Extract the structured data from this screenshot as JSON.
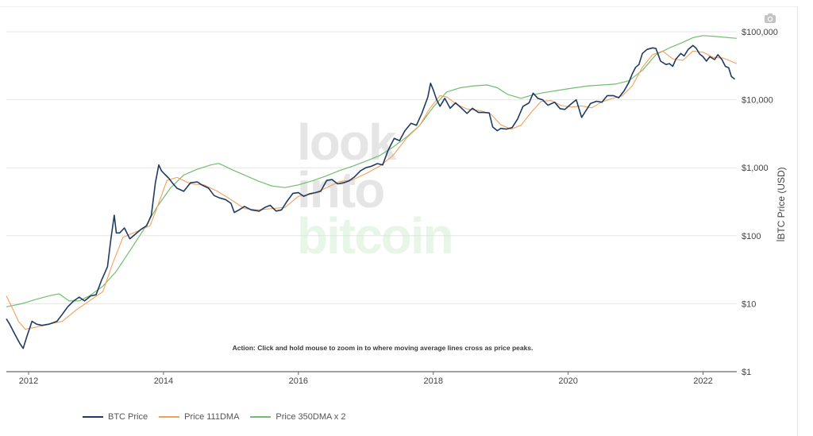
{
  "watermark": {
    "line1": "look",
    "line2": "into",
    "line3": "bitcoin"
  },
  "annotation": "Action: Click and hold mouse to zoom in to where moving average lines cross as price peaks.",
  "icons": {
    "modebar": "camera-icon"
  },
  "chart_data": {
    "type": "line",
    "title": "",
    "xlabel": "",
    "ylabel": "BTC Price (USD)",
    "y_scale": "log",
    "ylim": [
      1,
      100000
    ],
    "xlim": [
      2011.67,
      2022.5
    ],
    "y_ticks": [
      1,
      10,
      100,
      1000,
      10000,
      100000
    ],
    "y_tick_labels": [
      "$1",
      "$10",
      "$100",
      "$1,000",
      "$10,000",
      "$100,000"
    ],
    "x_ticks": [
      2012,
      2014,
      2016,
      2018,
      2020,
      2022
    ],
    "x_tick_labels": [
      "2012",
      "2014",
      "2016",
      "2018",
      "2020",
      "2022"
    ],
    "grid": true,
    "legend_position": "bottom-left",
    "series": [
      {
        "name": "BTC Price",
        "color": "#1f3b63",
        "points": [
          [
            2011.67,
            6
          ],
          [
            2011.72,
            5
          ],
          [
            2011.8,
            3.5
          ],
          [
            2011.87,
            2.6
          ],
          [
            2011.92,
            2.2
          ],
          [
            2011.97,
            3.2
          ],
          [
            2012.05,
            5.5
          ],
          [
            2012.12,
            5.0
          ],
          [
            2012.2,
            4.8
          ],
          [
            2012.3,
            5.0
          ],
          [
            2012.42,
            5.5
          ],
          [
            2012.5,
            7
          ],
          [
            2012.58,
            9
          ],
          [
            2012.67,
            11
          ],
          [
            2012.75,
            12.5
          ],
          [
            2012.83,
            11
          ],
          [
            2012.92,
            13
          ],
          [
            2013.0,
            13.5
          ],
          [
            2013.08,
            22
          ],
          [
            2013.17,
            35
          ],
          [
            2013.22,
            90
          ],
          [
            2013.27,
            200
          ],
          [
            2013.3,
            110
          ],
          [
            2013.35,
            110
          ],
          [
            2013.42,
            130
          ],
          [
            2013.5,
            90
          ],
          [
            2013.58,
            105
          ],
          [
            2013.67,
            125
          ],
          [
            2013.75,
            140
          ],
          [
            2013.82,
            200
          ],
          [
            2013.88,
            600
          ],
          [
            2013.93,
            1100
          ],
          [
            2013.97,
            900
          ],
          [
            2014.02,
            800
          ],
          [
            2014.08,
            700
          ],
          [
            2014.13,
            600
          ],
          [
            2014.2,
            500
          ],
          [
            2014.3,
            450
          ],
          [
            2014.4,
            600
          ],
          [
            2014.5,
            620
          ],
          [
            2014.58,
            550
          ],
          [
            2014.67,
            500
          ],
          [
            2014.75,
            390
          ],
          [
            2014.83,
            360
          ],
          [
            2014.92,
            340
          ],
          [
            2015.0,
            300
          ],
          [
            2015.05,
            220
          ],
          [
            2015.12,
            240
          ],
          [
            2015.2,
            270
          ],
          [
            2015.3,
            240
          ],
          [
            2015.42,
            230
          ],
          [
            2015.5,
            260
          ],
          [
            2015.58,
            280
          ],
          [
            2015.67,
            230
          ],
          [
            2015.75,
            240
          ],
          [
            2015.83,
            320
          ],
          [
            2015.92,
            420
          ],
          [
            2016.0,
            430
          ],
          [
            2016.08,
            380
          ],
          [
            2016.17,
            415
          ],
          [
            2016.25,
            430
          ],
          [
            2016.33,
            450
          ],
          [
            2016.42,
            650
          ],
          [
            2016.5,
            670
          ],
          [
            2016.58,
            580
          ],
          [
            2016.67,
            600
          ],
          [
            2016.75,
            640
          ],
          [
            2016.83,
            730
          ],
          [
            2016.92,
            900
          ],
          [
            2017.0,
            1000
          ],
          [
            2017.08,
            1050
          ],
          [
            2017.17,
            1150
          ],
          [
            2017.25,
            1100
          ],
          [
            2017.33,
            1800
          ],
          [
            2017.42,
            2700
          ],
          [
            2017.5,
            2500
          ],
          [
            2017.58,
            3500
          ],
          [
            2017.67,
            4500
          ],
          [
            2017.75,
            4200
          ],
          [
            2017.83,
            6300
          ],
          [
            2017.92,
            11000
          ],
          [
            2017.96,
            17500
          ],
          [
            2018.0,
            14000
          ],
          [
            2018.05,
            10000
          ],
          [
            2018.1,
            8000
          ],
          [
            2018.17,
            10500
          ],
          [
            2018.25,
            7500
          ],
          [
            2018.33,
            9000
          ],
          [
            2018.42,
            7500
          ],
          [
            2018.5,
            6300
          ],
          [
            2018.58,
            7500
          ],
          [
            2018.67,
            6500
          ],
          [
            2018.75,
            6500
          ],
          [
            2018.83,
            6400
          ],
          [
            2018.88,
            4000
          ],
          [
            2018.95,
            3500
          ],
          [
            2019.0,
            3800
          ],
          [
            2019.08,
            3700
          ],
          [
            2019.17,
            3900
          ],
          [
            2019.25,
            5200
          ],
          [
            2019.33,
            8000
          ],
          [
            2019.42,
            9000
          ],
          [
            2019.48,
            12500
          ],
          [
            2019.55,
            10500
          ],
          [
            2019.62,
            10000
          ],
          [
            2019.7,
            8300
          ],
          [
            2019.8,
            9200
          ],
          [
            2019.88,
            7400
          ],
          [
            2019.95,
            7200
          ],
          [
            2020.05,
            8800
          ],
          [
            2020.12,
            10000
          ],
          [
            2020.2,
            5500
          ],
          [
            2020.25,
            6600
          ],
          [
            2020.33,
            8800
          ],
          [
            2020.42,
            9500
          ],
          [
            2020.5,
            9200
          ],
          [
            2020.58,
            11500
          ],
          [
            2020.67,
            11500
          ],
          [
            2020.75,
            10700
          ],
          [
            2020.83,
            13500
          ],
          [
            2020.9,
            18000
          ],
          [
            2020.95,
            24000
          ],
          [
            2021.0,
            30000
          ],
          [
            2021.05,
            33000
          ],
          [
            2021.1,
            48000
          ],
          [
            2021.17,
            55000
          ],
          [
            2021.25,
            58000
          ],
          [
            2021.3,
            57000
          ],
          [
            2021.37,
            37000
          ],
          [
            2021.45,
            33000
          ],
          [
            2021.5,
            34000
          ],
          [
            2021.55,
            31000
          ],
          [
            2021.6,
            40000
          ],
          [
            2021.67,
            48000
          ],
          [
            2021.72,
            44000
          ],
          [
            2021.78,
            55000
          ],
          [
            2021.85,
            63000
          ],
          [
            2021.9,
            57000
          ],
          [
            2021.95,
            47000
          ],
          [
            2022.0,
            43000
          ],
          [
            2022.05,
            37000
          ],
          [
            2022.1,
            43000
          ],
          [
            2022.17,
            39000
          ],
          [
            2022.22,
            46000
          ],
          [
            2022.28,
            39000
          ],
          [
            2022.33,
            31000
          ],
          [
            2022.38,
            29500
          ],
          [
            2022.42,
            22000
          ],
          [
            2022.47,
            20000
          ]
        ]
      },
      {
        "name": "Price 111DMA",
        "color": "#f5a05a",
        "points": [
          [
            2011.67,
            13
          ],
          [
            2011.75,
            9
          ],
          [
            2011.85,
            5.5
          ],
          [
            2011.95,
            4.2
          ],
          [
            2012.1,
            4.5
          ],
          [
            2012.3,
            5
          ],
          [
            2012.5,
            5.5
          ],
          [
            2012.7,
            8
          ],
          [
            2012.9,
            11
          ],
          [
            2013.1,
            15
          ],
          [
            2013.25,
            40
          ],
          [
            2013.4,
            95
          ],
          [
            2013.6,
            115
          ],
          [
            2013.8,
            140
          ],
          [
            2013.9,
            250
          ],
          [
            2014.05,
            650
          ],
          [
            2014.2,
            720
          ],
          [
            2014.4,
            580
          ],
          [
            2014.6,
            560
          ],
          [
            2014.8,
            450
          ],
          [
            2015.0,
            340
          ],
          [
            2015.2,
            250
          ],
          [
            2015.4,
            240
          ],
          [
            2015.6,
            250
          ],
          [
            2015.8,
            260
          ],
          [
            2016.0,
            380
          ],
          [
            2016.2,
            410
          ],
          [
            2016.4,
            500
          ],
          [
            2016.6,
            620
          ],
          [
            2016.8,
            660
          ],
          [
            2017.0,
            820
          ],
          [
            2017.2,
            1050
          ],
          [
            2017.4,
            1500
          ],
          [
            2017.6,
            2700
          ],
          [
            2017.8,
            4200
          ],
          [
            2017.95,
            7500
          ],
          [
            2018.1,
            11500
          ],
          [
            2018.2,
            11000
          ],
          [
            2018.35,
            8500
          ],
          [
            2018.5,
            7300
          ],
          [
            2018.7,
            6900
          ],
          [
            2018.85,
            6200
          ],
          [
            2019.0,
            4300
          ],
          [
            2019.15,
            3700
          ],
          [
            2019.3,
            4200
          ],
          [
            2019.45,
            6500
          ],
          [
            2019.6,
            9500
          ],
          [
            2019.75,
            9700
          ],
          [
            2019.9,
            8200
          ],
          [
            2020.05,
            7800
          ],
          [
            2020.2,
            8100
          ],
          [
            2020.35,
            7600
          ],
          [
            2020.5,
            9300
          ],
          [
            2020.65,
            10400
          ],
          [
            2020.8,
            11400
          ],
          [
            2020.95,
            16000
          ],
          [
            2021.1,
            30000
          ],
          [
            2021.25,
            46000
          ],
          [
            2021.4,
            52000
          ],
          [
            2021.55,
            40000
          ],
          [
            2021.7,
            38000
          ],
          [
            2021.85,
            52000
          ],
          [
            2022.0,
            50000
          ],
          [
            2022.15,
            42000
          ],
          [
            2022.3,
            41000
          ],
          [
            2022.5,
            34000
          ]
        ]
      },
      {
        "name": "Price 350DMA x 2",
        "color": "#72be6e",
        "points": [
          [
            2011.67,
            9
          ],
          [
            2011.9,
            10
          ],
          [
            2012.1,
            11.5
          ],
          [
            2012.3,
            13
          ],
          [
            2012.45,
            14
          ],
          [
            2012.6,
            11
          ],
          [
            2012.75,
            11
          ],
          [
            2012.9,
            13
          ],
          [
            2013.1,
            18
          ],
          [
            2013.3,
            30
          ],
          [
            2013.5,
            60
          ],
          [
            2013.7,
            120
          ],
          [
            2013.9,
            260
          ],
          [
            2014.1,
            500
          ],
          [
            2014.3,
            780
          ],
          [
            2014.5,
            950
          ],
          [
            2014.7,
            1100
          ],
          [
            2014.82,
            1160
          ],
          [
            2015.0,
            950
          ],
          [
            2015.2,
            780
          ],
          [
            2015.4,
            640
          ],
          [
            2015.6,
            540
          ],
          [
            2015.8,
            510
          ],
          [
            2016.0,
            560
          ],
          [
            2016.2,
            640
          ],
          [
            2016.4,
            750
          ],
          [
            2016.6,
            900
          ],
          [
            2016.8,
            1050
          ],
          [
            2017.0,
            1250
          ],
          [
            2017.2,
            1500
          ],
          [
            2017.4,
            2000
          ],
          [
            2017.6,
            2800
          ],
          [
            2017.8,
            4200
          ],
          [
            2018.0,
            7800
          ],
          [
            2018.2,
            13000
          ],
          [
            2018.4,
            15000
          ],
          [
            2018.6,
            16000
          ],
          [
            2018.8,
            16500
          ],
          [
            2018.95,
            15000
          ],
          [
            2019.1,
            12000
          ],
          [
            2019.3,
            10500
          ],
          [
            2019.5,
            12000
          ],
          [
            2019.7,
            13000
          ],
          [
            2019.9,
            14000
          ],
          [
            2020.1,
            15000
          ],
          [
            2020.3,
            16000
          ],
          [
            2020.5,
            16500
          ],
          [
            2020.7,
            17000
          ],
          [
            2020.9,
            19000
          ],
          [
            2021.1,
            27000
          ],
          [
            2021.3,
            46000
          ],
          [
            2021.5,
            58000
          ],
          [
            2021.7,
            70000
          ],
          [
            2021.85,
            82000
          ],
          [
            2022.0,
            88000
          ],
          [
            2022.2,
            85000
          ],
          [
            2022.5,
            80000
          ]
        ]
      }
    ]
  }
}
